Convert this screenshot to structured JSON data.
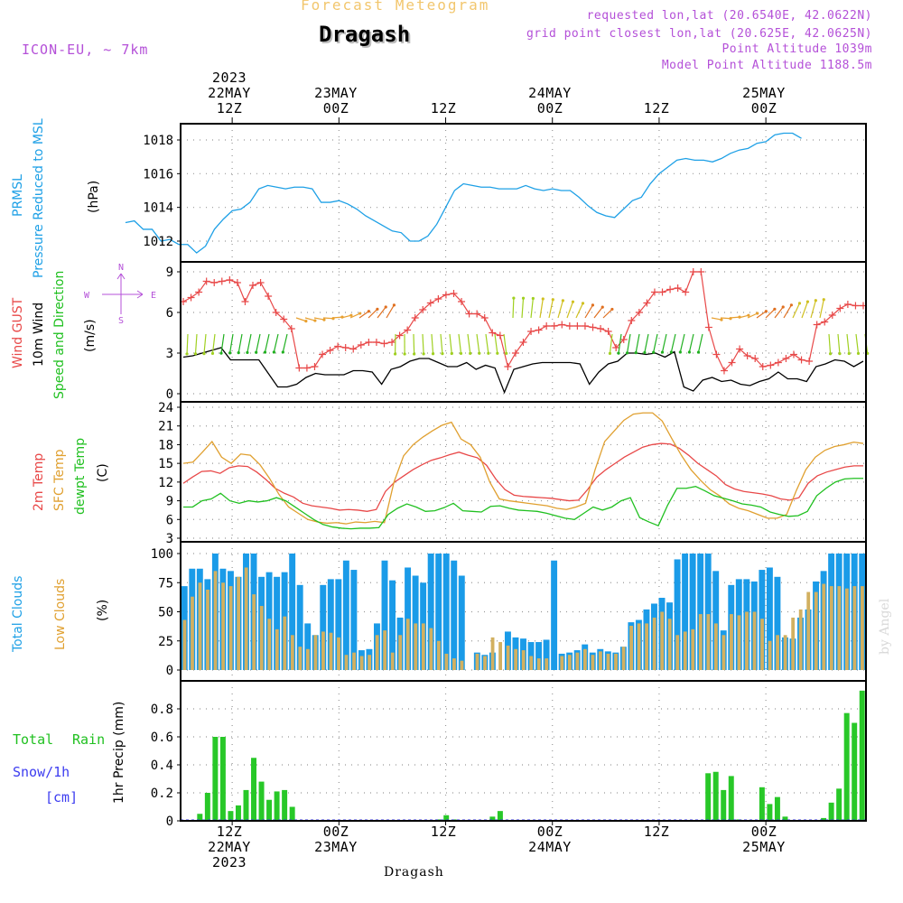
{
  "header": {
    "small_title": "Forecast Meteogram",
    "location_title": "Dragash",
    "model": "ICON-EU, ~ 7km",
    "requested": "requested lon,lat (20.6540E, 42.0622N)",
    "grid_point": "grid point closest lon,lat (20.625E, 42.0625N)",
    "point_altitude": "Point Altitude 1039m",
    "model_altitude": "Model Point Altitude 1188.5m"
  },
  "time_axis": {
    "top": [
      {
        "line1": "2023",
        "line2": "22MAY",
        "line3": "12Z",
        "hour": 12
      },
      {
        "line1": "",
        "line2": "23MAY",
        "line3": "00Z",
        "hour": 24
      },
      {
        "line1": "",
        "line2": "",
        "line3": "12Z",
        "hour": 36
      },
      {
        "line1": "",
        "line2": "24MAY",
        "line3": "00Z",
        "hour": 48
      },
      {
        "line1": "",
        "line2": "",
        "line3": "12Z",
        "hour": 60
      },
      {
        "line1": "",
        "line2": "25MAY",
        "line3": "00Z",
        "hour": 72
      }
    ],
    "bottom": [
      {
        "line1": "12Z",
        "line2": "22MAY",
        "line3": "2023",
        "hour": 12
      },
      {
        "line1": "00Z",
        "line2": "23MAY",
        "line3": "",
        "hour": 24
      },
      {
        "line1": "12Z",
        "line2": "",
        "line3": "",
        "hour": 36
      },
      {
        "line1": "00Z",
        "line2": "24MAY",
        "line3": "",
        "hour": 48
      },
      {
        "line1": "12Z",
        "line2": "",
        "line3": "",
        "hour": 60
      },
      {
        "line1": "00Z",
        "line2": "25MAY",
        "line3": "",
        "hour": 72
      }
    ],
    "footer": "Dragash",
    "watermark": "by Angel"
  },
  "labels": {
    "pressure": {
      "l1": "PRMSL",
      "l2": "Pressure Reduced to MSL",
      "unit": "(hPa)"
    },
    "wind": {
      "l1": "Wind GUST",
      "l2": "10m Wind",
      "l3": "Speed and Direction",
      "unit": "(m/s)",
      "compass_n": "N",
      "compass_s": "S",
      "compass_w": "W",
      "compass_e": "E"
    },
    "temp": {
      "l1": "2m Temp",
      "l2": "SFC Temp",
      "l3": "dewpt Temp",
      "unit": "(C)"
    },
    "clouds": {
      "l1": "Total Clouds",
      "l2": "Low Clouds",
      "unit": "(%)"
    },
    "precip": {
      "l1": "Total",
      "l1b": "Rain",
      "l2": "Snow/1h",
      "l3": "[cm]",
      "unit": "1hr Precip (mm)"
    }
  },
  "colors": {
    "pressure": "#1ea0e6",
    "gust": "#e84848",
    "wind": "#000000",
    "temp2m": "#e84848",
    "sfc": "#e0a030",
    "dewpt": "#20c020",
    "total_clouds": "#1a9be8",
    "low_clouds": "#d2b060",
    "rain": "#28c828",
    "snow": "#3c3cf0",
    "purple": "#b450d8"
  },
  "chart_data": [
    {
      "type": "line",
      "title": "PRMSL Pressure Reduced to MSL",
      "ylabel": "(hPa)",
      "ylim": [
        1011,
        1019
      ],
      "yticks": [
        1012,
        1014,
        1016,
        1018
      ],
      "x_start_hour": 0,
      "x_step_hours": 1,
      "values": [
        1013.1,
        1013.2,
        1012.7,
        1012.7,
        1012.0,
        1012.1,
        1011.8,
        1011.8,
        1011.3,
        1011.7,
        1012.7,
        1013.3,
        1013.8,
        1013.9,
        1014.3,
        1015.1,
        1015.3,
        1015.2,
        1015.1,
        1015.2,
        1015.2,
        1015.1,
        1014.3,
        1014.3,
        1014.4,
        1014.2,
        1013.9,
        1013.5,
        1013.2,
        1012.9,
        1012.6,
        1012.5,
        1012.0,
        1012.0,
        1012.3,
        1013.0,
        1014.0,
        1015.0,
        1015.4,
        1015.3,
        1015.2,
        1015.2,
        1015.1,
        1015.1,
        1015.1,
        1015.3,
        1015.1,
        1015.0,
        1015.1,
        1015.0,
        1015.0,
        1014.6,
        1014.1,
        1013.7,
        1013.5,
        1013.4,
        1013.9,
        1014.4,
        1014.6,
        1015.4,
        1016.0,
        1016.4,
        1016.8,
        1016.9,
        1016.8,
        1016.8,
        1016.7,
        1016.9,
        1017.2,
        1017.4,
        1017.5,
        1017.8,
        1017.9,
        1018.3,
        1018.4,
        1018.4,
        1018.1
      ]
    },
    {
      "type": "line",
      "title": "Wind GUST / 10m Wind Speed and Direction",
      "ylabel": "(m/s)",
      "ylim": [
        0,
        9.5
      ],
      "yticks": [
        0,
        3,
        6,
        9
      ],
      "x_start_hour": 0,
      "x_step_hours": 1,
      "series": [
        {
          "name": "Wind GUST",
          "values": [
            6.8,
            7.1,
            7.5,
            8.3,
            8.2,
            8.3,
            8.4,
            8.2,
            6.8,
            8.0,
            8.2,
            7.2,
            6.0,
            5.5,
            4.8,
            1.9,
            1.9,
            2.0,
            2.9,
            3.2,
            3.5,
            3.4,
            3.3,
            3.6,
            3.8,
            3.8,
            3.7,
            3.8,
            4.3,
            4.7,
            5.6,
            6.2,
            6.7,
            7.0,
            7.3,
            7.4,
            6.8,
            5.9,
            5.9,
            5.6,
            4.5,
            4.3,
            2.0,
            3.0,
            3.8,
            4.6,
            4.7,
            5.0,
            5.0,
            5.1,
            5.0,
            5.0,
            5.0,
            4.9,
            4.8,
            4.6,
            3.4,
            4.0,
            5.4,
            6.0,
            6.7,
            7.5,
            7.5,
            7.7,
            7.8,
            7.5,
            9.0,
            9.0,
            4.9,
            2.9,
            1.7,
            2.3,
            3.3,
            2.8,
            2.6,
            2.0,
            2.1,
            2.3,
            2.6,
            2.9,
            2.5,
            2.4,
            5.1,
            5.3,
            5.8,
            6.3,
            6.6,
            6.5,
            6.5
          ]
        },
        {
          "name": "10m Wind",
          "values": [
            2.7,
            2.8,
            3.0,
            3.2,
            3.4,
            2.5,
            2.5,
            2.5,
            2.5,
            1.5,
            0.5,
            0.5,
            0.7,
            1.2,
            1.5,
            1.4,
            1.4,
            1.4,
            1.7,
            1.7,
            1.6,
            0.7,
            1.8,
            2.0,
            2.4,
            2.6,
            2.6,
            2.3,
            2.0,
            2.0,
            2.3,
            1.8,
            2.1,
            1.9,
            0.1,
            1.8,
            2.0,
            2.2,
            2.3,
            2.3,
            2.3,
            2.3,
            2.2,
            0.7,
            1.6,
            2.2,
            2.4,
            3.0,
            3.0,
            2.9,
            3.0,
            2.7,
            3.1,
            0.5,
            0.2,
            1.0,
            1.2,
            0.9,
            1.0,
            0.7,
            0.6,
            0.9,
            1.1,
            1.6,
            1.1,
            1.1,
            0.9,
            2.0,
            2.2,
            2.5,
            2.4,
            2.0,
            2.4
          ]
        }
      ]
    },
    {
      "type": "line",
      "title": "2m Temp / SFC Temp / dewpt Temp",
      "ylabel": "(C)",
      "ylim": [
        3,
        24
      ],
      "yticks": [
        3,
        6,
        9,
        12,
        15,
        18,
        21,
        24
      ],
      "x_start_hour": 0,
      "x_step_hours": 1,
      "series": [
        {
          "name": "2m Temp",
          "values": [
            11.8,
            12.8,
            13.7,
            13.8,
            13.4,
            14.3,
            14.6,
            14.5,
            13.6,
            12.4,
            11.0,
            10.2,
            9.6,
            8.6,
            8.2,
            8.0,
            7.8,
            7.5,
            7.6,
            7.5,
            7.3,
            7.6,
            10.5,
            12.0,
            13.0,
            14.0,
            14.8,
            15.5,
            15.9,
            16.4,
            16.8,
            16.3,
            15.9,
            14.7,
            12.5,
            10.8,
            9.9,
            9.7,
            9.6,
            9.5,
            9.4,
            9.2,
            9.0,
            9.1,
            10.8,
            12.8,
            14.0,
            15.0,
            16.0,
            16.8,
            17.6,
            18.0,
            18.2,
            18.1,
            17.4,
            16.3,
            15.0,
            14.0,
            13.0,
            11.6,
            10.9,
            10.5,
            10.3,
            10.1,
            9.8,
            9.3,
            9.1,
            9.5,
            11.8,
            13.0,
            13.6,
            14.0,
            14.4,
            14.6,
            14.6
          ]
        },
        {
          "name": "SFC Temp",
          "values": [
            15.0,
            15.2,
            16.8,
            18.5,
            16.0,
            15.0,
            16.5,
            16.3,
            14.8,
            12.6,
            10.0,
            8.0,
            7.0,
            6.0,
            5.6,
            5.4,
            5.5,
            5.3,
            5.6,
            5.5,
            5.7,
            5.5,
            12.0,
            16.2,
            18.0,
            19.2,
            20.2,
            21.1,
            21.6,
            18.9,
            18.0,
            16.0,
            12.0,
            9.3,
            9.0,
            8.8,
            8.6,
            8.4,
            8.2,
            7.8,
            7.6,
            8.0,
            8.6,
            14.0,
            18.5,
            20.2,
            21.9,
            22.9,
            23.1,
            23.1,
            21.8,
            19.0,
            16.3,
            14.0,
            12.3,
            10.8,
            9.8,
            8.5,
            7.8,
            7.4,
            6.8,
            6.2,
            6.2,
            6.8,
            10.6,
            14.0,
            16.0,
            17.1,
            17.7,
            18.0,
            18.4,
            18.2
          ]
        },
        {
          "name": "dewpt Temp",
          "values": [
            8.0,
            8.0,
            9.0,
            9.3,
            10.2,
            9.0,
            8.6,
            9.0,
            8.8,
            9.0,
            9.5,
            9.0,
            8.0,
            7.0,
            6.0,
            5.2,
            4.8,
            4.6,
            4.5,
            4.6,
            4.6,
            4.7,
            6.8,
            7.8,
            8.5,
            8.0,
            7.3,
            7.4,
            7.9,
            8.6,
            7.4,
            7.3,
            7.2,
            8.1,
            8.2,
            7.8,
            7.5,
            7.4,
            7.3,
            7.0,
            6.6,
            6.2,
            6.0,
            7.0,
            8.0,
            7.5,
            8.0,
            9.0,
            9.5,
            6.3,
            5.6,
            5.0,
            8.3,
            11.0,
            11.0,
            11.3,
            10.6,
            9.8,
            9.4,
            9.0,
            8.5,
            8.3,
            8.0,
            7.2,
            6.8,
            6.5,
            6.6,
            7.3,
            9.8,
            11.0,
            12.0,
            12.5,
            12.6,
            12.6
          ]
        }
      ]
    },
    {
      "type": "bar",
      "title": "Total Clouds / Low Clouds",
      "ylabel": "(%)",
      "ylim": [
        0,
        100
      ],
      "yticks": [
        0,
        25,
        50,
        75,
        100
      ],
      "x_start_hour": 0,
      "x_step_hours": 1,
      "series": [
        {
          "name": "Total Clouds",
          "values": [
            72,
            87,
            87,
            78,
            100,
            87,
            85,
            80,
            100,
            100,
            80,
            84,
            80,
            84,
            100,
            73,
            40,
            30,
            73,
            78,
            78,
            94,
            86,
            17,
            18,
            40,
            94,
            77,
            45,
            88,
            81,
            75,
            100,
            100,
            100,
            94,
            81,
            0,
            15,
            13,
            15,
            0,
            33,
            28,
            27,
            24,
            24,
            26,
            94,
            14,
            15,
            17,
            22,
            15,
            18,
            16,
            15,
            20,
            41,
            43,
            52,
            57,
            62,
            58,
            95,
            100,
            100,
            100,
            100,
            85,
            34,
            73,
            78,
            78,
            76,
            86,
            88,
            80,
            28,
            27,
            45,
            52,
            76,
            85,
            100,
            100,
            100,
            100,
            100
          ]
        },
        {
          "name": "Low Clouds",
          "values": [
            43,
            63,
            75,
            69,
            85,
            75,
            72,
            80,
            88,
            65,
            55,
            44,
            35,
            46,
            30,
            20,
            18,
            30,
            33,
            32,
            28,
            13,
            15,
            12,
            13,
            30,
            34,
            15,
            30,
            44,
            40,
            40,
            36,
            25,
            14,
            10,
            8,
            0,
            14,
            12,
            28,
            24,
            21,
            18,
            17,
            12,
            10,
            10,
            0,
            12,
            13,
            15,
            18,
            13,
            16,
            14,
            14,
            20,
            38,
            40,
            40,
            45,
            50,
            44,
            30,
            33,
            35,
            48,
            48,
            40,
            30,
            48,
            47,
            50,
            50,
            44,
            25,
            30,
            30,
            45,
            52,
            67,
            67,
            74,
            72,
            72,
            70,
            72,
            72
          ]
        }
      ]
    },
    {
      "type": "bar",
      "title": "1hr Precip",
      "ylabel": "1hr Precip (mm)",
      "ylim": [
        0,
        0.95
      ],
      "yticks": [
        0,
        0.2,
        0.4,
        0.6,
        0.8
      ],
      "x_start_hour": 0,
      "x_step_hours": 1,
      "series": [
        {
          "name": "Total Rain",
          "values": [
            0,
            0,
            0.05,
            0.2,
            0.6,
            0.6,
            0.07,
            0.11,
            0.22,
            0.45,
            0.28,
            0.15,
            0.21,
            0.22,
            0.1,
            0,
            0,
            0,
            0,
            0,
            0,
            0,
            0,
            0,
            0,
            0,
            0,
            0,
            0,
            0,
            0,
            0,
            0,
            0.01,
            0.04,
            0.01,
            0,
            0,
            0,
            0,
            0.03,
            0.07,
            0,
            0,
            0,
            0,
            0,
            0,
            0,
            0,
            0,
            0,
            0,
            0,
            0,
            0,
            0,
            0,
            0,
            0,
            0,
            0,
            0,
            0,
            0,
            0,
            0,
            0,
            0.34,
            0.35,
            0.22,
            0.32,
            0.01,
            0,
            0,
            0.24,
            0.12,
            0.17,
            0.03,
            0,
            0,
            0,
            0,
            0.02,
            0.13,
            0.23,
            0.77,
            0.7,
            0.93
          ]
        }
      ]
    }
  ]
}
